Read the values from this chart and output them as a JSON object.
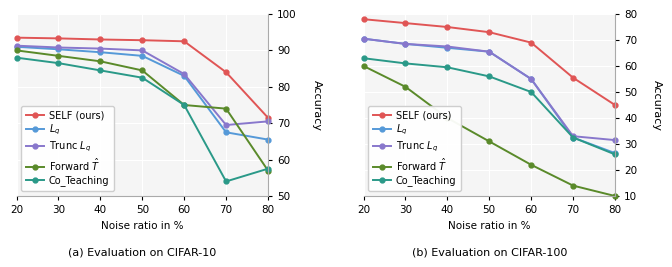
{
  "x": [
    20,
    30,
    40,
    50,
    60,
    70,
    80
  ],
  "cifar10": {
    "SELF": [
      93.5,
      93.3,
      93.0,
      92.8,
      92.5,
      84.0,
      71.5
    ],
    "Lq": [
      91.0,
      90.3,
      89.5,
      88.5,
      83.0,
      67.5,
      65.5
    ],
    "Trunc_Lq": [
      91.3,
      90.8,
      90.5,
      90.0,
      83.5,
      69.5,
      70.5
    ],
    "Forward_T": [
      90.0,
      88.5,
      87.0,
      84.5,
      75.0,
      74.0,
      57.0
    ],
    "Co_Teaching": [
      88.0,
      86.5,
      84.5,
      82.5,
      75.0,
      54.0,
      57.5
    ]
  },
  "cifar100": {
    "SELF": [
      78.0,
      76.5,
      75.0,
      73.0,
      69.0,
      55.5,
      45.0
    ],
    "Lq": [
      70.5,
      68.5,
      67.0,
      65.5,
      55.0,
      32.5,
      26.5
    ],
    "Trunc_Lq": [
      70.5,
      68.5,
      67.5,
      65.5,
      55.0,
      33.0,
      31.5
    ],
    "Forward_T": [
      60.0,
      52.0,
      40.0,
      31.0,
      22.0,
      14.0,
      10.0
    ],
    "Co_Teaching": [
      63.0,
      61.0,
      59.5,
      56.0,
      50.0,
      32.5,
      26.0
    ]
  },
  "colors": {
    "SELF": "#e05555",
    "Lq": "#5599d8",
    "Trunc_Lq": "#8877cc",
    "Forward_T": "#5a8a2a",
    "Co_Teaching": "#2a9988"
  },
  "ylim_cifar10": [
    50,
    100
  ],
  "ylim_cifar100": [
    10,
    80
  ],
  "yticks_cifar10": [
    50,
    60,
    70,
    80,
    90,
    100
  ],
  "yticks_cifar100": [
    10,
    20,
    30,
    40,
    50,
    60,
    70,
    80
  ],
  "xlabel": "Noise ratio in %",
  "ylabel": "Accuracy",
  "caption_a": "(a) Evaluation on CIFAR-10",
  "caption_b": "(b) Evaluation on CIFAR-100",
  "legend_labels": [
    "SELF (ours)",
    "$L_q$",
    "Trunc $L_q$",
    "Forward $\\hat{T}$",
    "Co_Teaching"
  ],
  "legend_keys": [
    "SELF",
    "Lq",
    "Trunc_Lq",
    "Forward_T",
    "Co_Teaching"
  ],
  "markersize": 3.5,
  "linewidth": 1.4
}
